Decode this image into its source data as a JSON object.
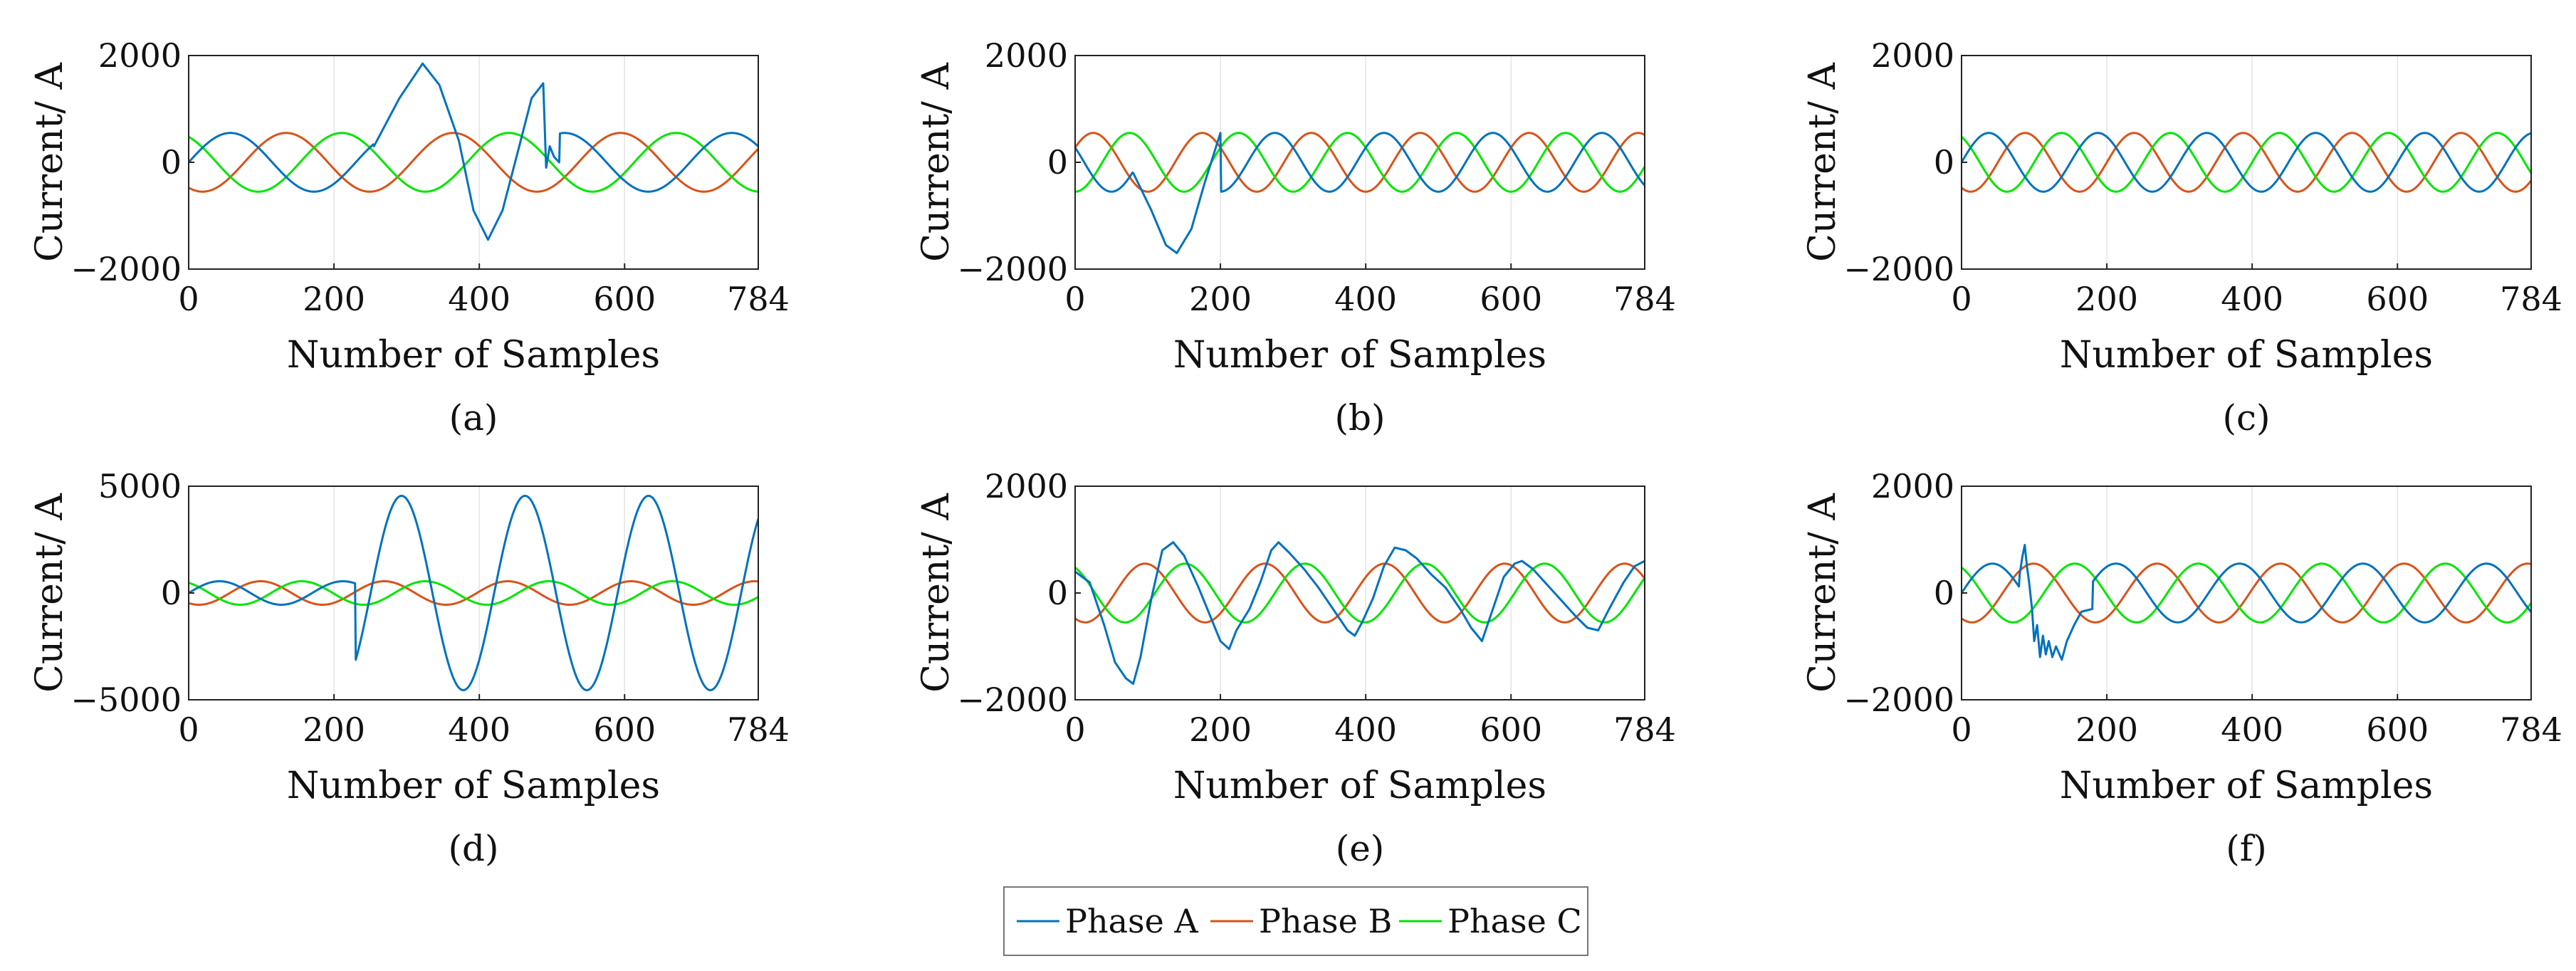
{
  "colors": {
    "phase_a": "#0072BD",
    "phase_b": "#D95319",
    "phase_c": "#00E600",
    "axis": "#222222",
    "grid": "#e3e3e3"
  },
  "legend": {
    "entries": [
      "Phase A",
      "Phase B",
      "Phase C"
    ],
    "placement": "bottom-center"
  },
  "chart_data": [
    {
      "type": "line",
      "panel": "(a)",
      "xlabel": "Number of Samples",
      "ylabel": "Current/ A",
      "xlim": [
        0,
        784
      ],
      "ylim": [
        -2000,
        2000
      ],
      "xticks": [
        0,
        200,
        400,
        600,
        784
      ],
      "yticks": [
        -2000,
        0,
        2000
      ],
      "period": 230,
      "amplitude": 550,
      "phaseA_offset": 0,
      "series_names": [
        "Phase A",
        "Phase B",
        "Phase C"
      ],
      "phaseA_fault": {
        "from": 255,
        "to": 510,
        "points": [
          [
            255,
            300
          ],
          [
            290,
            1200
          ],
          [
            322,
            1850
          ],
          [
            345,
            1450
          ],
          [
            372,
            400
          ],
          [
            392,
            -900
          ],
          [
            412,
            -1450
          ],
          [
            432,
            -900
          ],
          [
            455,
            300
          ],
          [
            472,
            1200
          ],
          [
            488,
            1480
          ],
          [
            492,
            -100
          ],
          [
            497,
            300
          ],
          [
            503,
            100
          ],
          [
            510,
            0
          ]
        ]
      }
    },
    {
      "type": "line",
      "panel": "(b)",
      "xlabel": "Number of Samples",
      "ylabel": "Current/ A",
      "xlim": [
        0,
        784
      ],
      "ylim": [
        -2000,
        2000
      ],
      "xticks": [
        0,
        200,
        400,
        600,
        784
      ],
      "yticks": [
        -2000,
        0,
        2000
      ],
      "period": 150,
      "amplitude": 550,
      "phaseA_offset": 150,
      "series_names": [
        "Phase A",
        "Phase B",
        "Phase C"
      ],
      "phaseA_fault": {
        "from": 80,
        "to": 200,
        "points": [
          [
            80,
            -200
          ],
          [
            105,
            -900
          ],
          [
            125,
            -1550
          ],
          [
            140,
            -1700
          ],
          [
            160,
            -1250
          ],
          [
            178,
            -400
          ],
          [
            200,
            550
          ]
        ]
      }
    },
    {
      "type": "line",
      "panel": "(c)",
      "xlabel": "Number of Samples",
      "ylabel": "Current/ A",
      "xlim": [
        0,
        784
      ],
      "ylim": [
        -2000,
        2000
      ],
      "xticks": [
        0,
        200,
        400,
        600,
        784
      ],
      "yticks": [
        -2000,
        0,
        2000
      ],
      "period": 150,
      "amplitude": 550,
      "phaseA_offset": 0,
      "series_names": [
        "Phase A",
        "Phase B",
        "Phase C"
      ],
      "phaseA_fault": null
    },
    {
      "type": "line",
      "panel": "(d)",
      "xlabel": "Number of Samples",
      "ylabel": "Current/ A",
      "xlim": [
        0,
        784
      ],
      "ylim": [
        -5000,
        5000
      ],
      "xticks": [
        0,
        200,
        400,
        600,
        784
      ],
      "yticks": [
        -5000,
        0,
        5000
      ],
      "period": 170,
      "amplitude": 550,
      "phaseA_offset": 0,
      "series_names": [
        "Phase A",
        "Phase B",
        "Phase C"
      ],
      "phaseA_fault": {
        "from": 230,
        "to": 784,
        "kind": "sine",
        "amplitude": 4550,
        "period": 170,
        "peak_at": 293
      }
    },
    {
      "type": "line",
      "panel": "(e)",
      "xlabel": "Number of Samples",
      "ylabel": "Current/ A",
      "xlim": [
        0,
        784
      ],
      "ylim": [
        -2000,
        2000
      ],
      "xticks": [
        0,
        200,
        400,
        600,
        784
      ],
      "yticks": [
        -2000,
        0,
        2000
      ],
      "period": 165,
      "amplitude": 550,
      "phaseA_offset": 0,
      "series_names": [
        "Phase A",
        "Phase B",
        "Phase C"
      ],
      "phaseA_fault": {
        "from": 0,
        "to": 784,
        "points": [
          [
            0,
            400
          ],
          [
            20,
            200
          ],
          [
            40,
            -600
          ],
          [
            55,
            -1300
          ],
          [
            70,
            -1600
          ],
          [
            80,
            -1700
          ],
          [
            90,
            -1200
          ],
          [
            105,
            -100
          ],
          [
            120,
            800
          ],
          [
            135,
            950
          ],
          [
            150,
            700
          ],
          [
            170,
            100
          ],
          [
            185,
            -400
          ],
          [
            200,
            -900
          ],
          [
            212,
            -1050
          ],
          [
            222,
            -700
          ],
          [
            240,
            -300
          ],
          [
            255,
            200
          ],
          [
            270,
            800
          ],
          [
            280,
            950
          ],
          [
            295,
            750
          ],
          [
            315,
            450
          ],
          [
            335,
            100
          ],
          [
            355,
            -300
          ],
          [
            375,
            -700
          ],
          [
            385,
            -800
          ],
          [
            395,
            -550
          ],
          [
            410,
            -100
          ],
          [
            425,
            500
          ],
          [
            440,
            850
          ],
          [
            455,
            800
          ],
          [
            470,
            650
          ],
          [
            490,
            350
          ],
          [
            510,
            100
          ],
          [
            530,
            -300
          ],
          [
            545,
            -650
          ],
          [
            560,
            -900
          ],
          [
            575,
            -300
          ],
          [
            590,
            300
          ],
          [
            605,
            550
          ],
          [
            615,
            600
          ],
          [
            630,
            450
          ],
          [
            650,
            150
          ],
          [
            670,
            -150
          ],
          [
            690,
            -450
          ],
          [
            705,
            -650
          ],
          [
            720,
            -700
          ],
          [
            735,
            -300
          ],
          [
            755,
            200
          ],
          [
            770,
            500
          ],
          [
            784,
            600
          ]
        ]
      }
    },
    {
      "type": "line",
      "panel": "(f)",
      "xlabel": "Number of Samples",
      "ylabel": "Current/ A",
      "xlim": [
        0,
        784
      ],
      "ylim": [
        -2000,
        2000
      ],
      "xticks": [
        0,
        200,
        400,
        600,
        784
      ],
      "yticks": [
        -2000,
        0,
        2000
      ],
      "period": 170,
      "amplitude": 550,
      "phaseA_offset": 0,
      "series_names": [
        "Phase A",
        "Phase B",
        "Phase C"
      ],
      "phaseA_fault": {
        "from": 80,
        "to": 180,
        "points": [
          [
            80,
            350
          ],
          [
            84,
            700
          ],
          [
            87,
            900
          ],
          [
            90,
            500
          ],
          [
            93,
            200
          ],
          [
            97,
            -300
          ],
          [
            100,
            -900
          ],
          [
            104,
            -600
          ],
          [
            108,
            -1200
          ],
          [
            112,
            -800
          ],
          [
            116,
            -1150
          ],
          [
            120,
            -900
          ],
          [
            125,
            -1200
          ],
          [
            130,
            -1000
          ],
          [
            138,
            -1250
          ],
          [
            145,
            -900
          ],
          [
            155,
            -600
          ],
          [
            165,
            -350
          ],
          [
            180,
            -300
          ]
        ]
      }
    }
  ]
}
